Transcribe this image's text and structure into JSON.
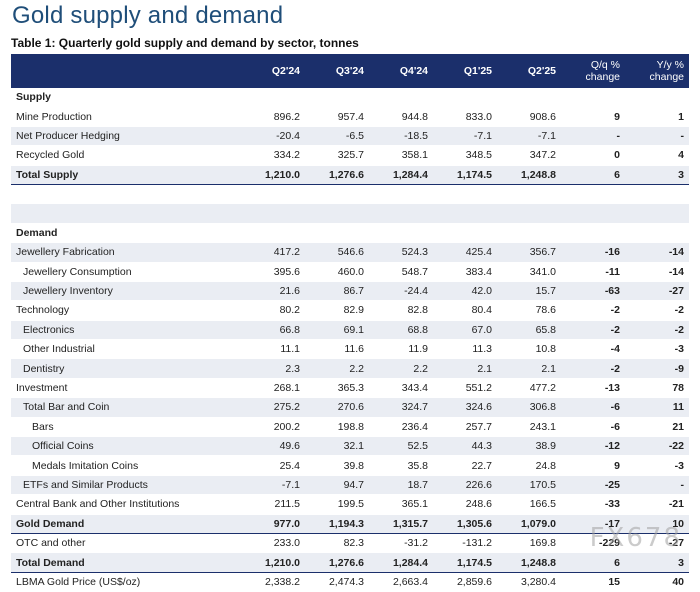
{
  "title": "Gold supply and demand",
  "subtitle": "Table 1: Quarterly gold supply and demand by sector, tonnes",
  "columns": [
    "Q2'24",
    "Q3'24",
    "Q4'24",
    "Q1'25",
    "Q2'25"
  ],
  "qq_header": [
    "Q/q %",
    "change"
  ],
  "yy_header": [
    "Y/y %",
    "change"
  ],
  "sections": {
    "supply": "Supply",
    "demand": "Demand"
  },
  "supply_rows": [
    {
      "label": "Mine Production",
      "v": [
        "896.2",
        "957.4",
        "944.8",
        "833.0",
        "908.6"
      ],
      "qq": "9",
      "yy": "1"
    },
    {
      "label": "Net Producer Hedging",
      "v": [
        "-20.4",
        "-6.5",
        "-18.5",
        "-7.1",
        "-7.1"
      ],
      "qq": "-",
      "yy": "-"
    },
    {
      "label": "Recycled Gold",
      "v": [
        "334.2",
        "325.7",
        "358.1",
        "348.5",
        "347.2"
      ],
      "qq": "0",
      "yy": "4"
    },
    {
      "label": "Total Supply",
      "v": [
        "1,210.0",
        "1,276.6",
        "1,284.4",
        "1,174.5",
        "1,248.8"
      ],
      "qq": "6",
      "yy": "3"
    }
  ],
  "demand_rows": [
    {
      "label": "Jewellery Fabrication",
      "v": [
        "417.2",
        "546.6",
        "524.3",
        "425.4",
        "356.7"
      ],
      "qq": "-16",
      "yy": "-14"
    },
    {
      "label": "Jewellery Consumption",
      "v": [
        "395.6",
        "460.0",
        "548.7",
        "383.4",
        "341.0"
      ],
      "qq": "-11",
      "yy": "-14"
    },
    {
      "label": "Jewellery Inventory",
      "v": [
        "21.6",
        "86.7",
        "-24.4",
        "42.0",
        "15.7"
      ],
      "qq": "-63",
      "yy": "-27"
    },
    {
      "label": "Technology",
      "v": [
        "80.2",
        "82.9",
        "82.8",
        "80.4",
        "78.6"
      ],
      "qq": "-2",
      "yy": "-2"
    },
    {
      "label": "Electronics",
      "v": [
        "66.8",
        "69.1",
        "68.8",
        "67.0",
        "65.8"
      ],
      "qq": "-2",
      "yy": "-2"
    },
    {
      "label": "Other Industrial",
      "v": [
        "11.1",
        "11.6",
        "11.9",
        "11.3",
        "10.8"
      ],
      "qq": "-4",
      "yy": "-3"
    },
    {
      "label": "Dentistry",
      "v": [
        "2.3",
        "2.2",
        "2.2",
        "2.1",
        "2.1"
      ],
      "qq": "-2",
      "yy": "-9"
    },
    {
      "label": "Investment",
      "v": [
        "268.1",
        "365.3",
        "343.4",
        "551.2",
        "477.2"
      ],
      "qq": "-13",
      "yy": "78"
    },
    {
      "label": "Total Bar and Coin",
      "v": [
        "275.2",
        "270.6",
        "324.7",
        "324.6",
        "306.8"
      ],
      "qq": "-6",
      "yy": "11"
    },
    {
      "label": "Bars",
      "v": [
        "200.2",
        "198.8",
        "236.4",
        "257.7",
        "243.1"
      ],
      "qq": "-6",
      "yy": "21"
    },
    {
      "label": "Official Coins",
      "v": [
        "49.6",
        "32.1",
        "52.5",
        "44.3",
        "38.9"
      ],
      "qq": "-12",
      "yy": "-22"
    },
    {
      "label": "Medals Imitation Coins",
      "v": [
        "25.4",
        "39.8",
        "35.8",
        "22.7",
        "24.8"
      ],
      "qq": "9",
      "yy": "-3"
    },
    {
      "label": "ETFs and Similar Products",
      "v": [
        "-7.1",
        "94.7",
        "18.7",
        "226.6",
        "170.5"
      ],
      "qq": "-25",
      "yy": "-"
    },
    {
      "label": "Central Bank and Other Institutions",
      "v": [
        "211.5",
        "199.5",
        "365.1",
        "248.6",
        "166.5"
      ],
      "qq": "-33",
      "yy": "-21"
    },
    {
      "label": "Gold Demand",
      "v": [
        "977.0",
        "1,194.3",
        "1,315.7",
        "1,305.6",
        "1,079.0"
      ],
      "qq": "-17",
      "yy": "10"
    },
    {
      "label": "OTC and other",
      "v": [
        "233.0",
        "82.3",
        "-31.2",
        "-131.2",
        "169.8"
      ],
      "qq": "-229",
      "yy": "-27"
    },
    {
      "label": "Total Demand",
      "v": [
        "1,210.0",
        "1,276.6",
        "1,284.4",
        "1,174.5",
        "1,248.8"
      ],
      "qq": "6",
      "yy": "3"
    },
    {
      "label": "LBMA Gold Price (US$/oz)",
      "v": [
        "2,338.2",
        "2,474.3",
        "2,663.4",
        "2,859.6",
        "3,280.4"
      ],
      "qq": "15",
      "yy": "40"
    }
  ],
  "watermark": "FX678"
}
